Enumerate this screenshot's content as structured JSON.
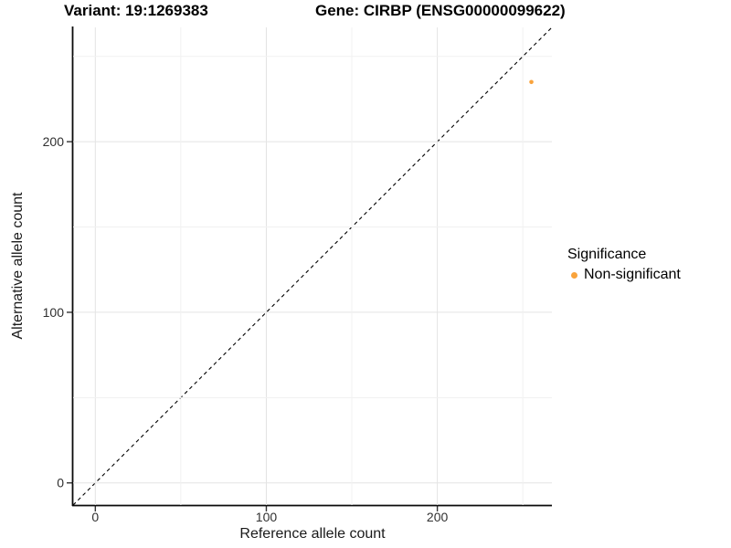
{
  "chart_data": {
    "type": "scatter",
    "title_left": "Variant: 19:1269383",
    "title_right": "Gene: CIRBP (ENSG00000099622)",
    "xlabel": "Reference allele count",
    "ylabel": "Alternative allele count",
    "xlim": [
      -13,
      267
    ],
    "ylim": [
      -13,
      267
    ],
    "x_ticks": [
      0,
      100,
      200
    ],
    "y_ticks": [
      0,
      100,
      200
    ],
    "grid_major": [
      0,
      100,
      200
    ],
    "grid_minor": [
      50,
      150,
      250
    ],
    "grid_on": true,
    "reference_line": {
      "kind": "identity",
      "style": "dashed"
    },
    "points": [
      {
        "x": 255,
        "y": 235,
        "series": "Non-significant"
      }
    ],
    "legend": {
      "title": "Significance",
      "position": "right",
      "items": [
        {
          "label": "Non-significant",
          "color": "#F9A33C"
        }
      ]
    },
    "colors": {
      "point": "#F9A33C",
      "grid_major": "#e4e4e4",
      "grid_minor": "#f1f1f1",
      "axis_line": "#0a0a0a",
      "tick_mark": "#333333",
      "identity_line": "#000000",
      "background": "#ffffff"
    }
  }
}
